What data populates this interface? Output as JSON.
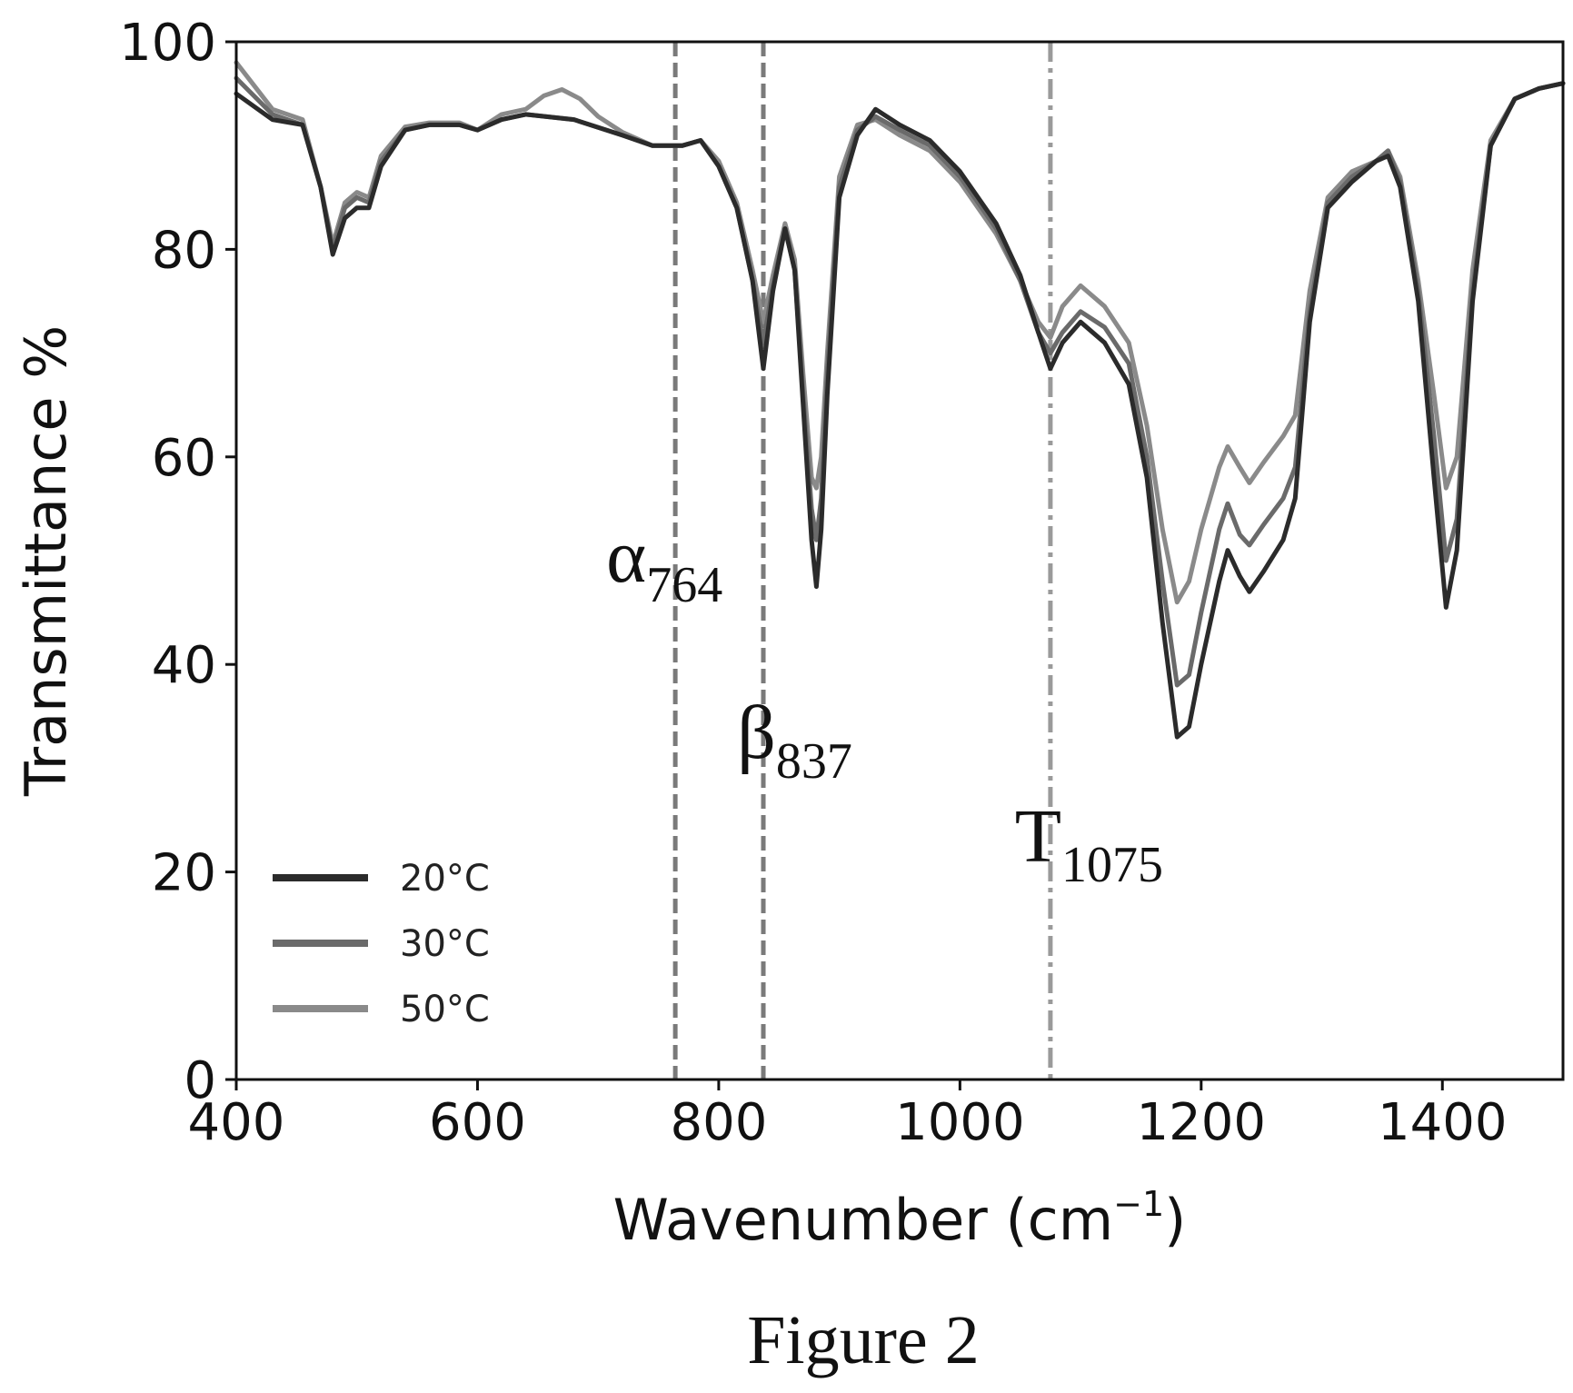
{
  "chart_data": {
    "type": "line",
    "xlabel": "Wavenumber (cm",
    "xlabel_sup": "−1",
    "xlabel_close": ")",
    "ylabel": "Transmittance %",
    "xlim": [
      400,
      1500
    ],
    "ylim": [
      0,
      100
    ],
    "x_ticks": [
      400,
      600,
      800,
      1000,
      1200,
      1400
    ],
    "y_ticks": [
      0,
      20,
      40,
      60,
      80,
      100
    ],
    "x_tick_labels": [
      "400",
      "600",
      "800",
      "1000",
      "1200",
      "1400"
    ],
    "y_tick_labels": [
      "0",
      "20",
      "40",
      "60",
      "80",
      "100"
    ],
    "grid": false,
    "legend_position": "bottom-left",
    "series": [
      {
        "name": "20°C",
        "color": "#2b2b2b",
        "points": [
          [
            400,
            95
          ],
          [
            430,
            92.5
          ],
          [
            455,
            92
          ],
          [
            470,
            86
          ],
          [
            480,
            79.5
          ],
          [
            490,
            83
          ],
          [
            500,
            84
          ],
          [
            510,
            84
          ],
          [
            520,
            88
          ],
          [
            540,
            91.5
          ],
          [
            560,
            92
          ],
          [
            585,
            92
          ],
          [
            600,
            91.5
          ],
          [
            620,
            92.5
          ],
          [
            640,
            93
          ],
          [
            680,
            92.5
          ],
          [
            720,
            91
          ],
          [
            745,
            90
          ],
          [
            770,
            90
          ],
          [
            785,
            90.5
          ],
          [
            800,
            88
          ],
          [
            815,
            84
          ],
          [
            828,
            77
          ],
          [
            837,
            68.5
          ],
          [
            845,
            76
          ],
          [
            855,
            82
          ],
          [
            863,
            78
          ],
          [
            870,
            65
          ],
          [
            877,
            52
          ],
          [
            881,
            47.5
          ],
          [
            885,
            53
          ],
          [
            890,
            66
          ],
          [
            900,
            85
          ],
          [
            915,
            91
          ],
          [
            930,
            93.5
          ],
          [
            950,
            92
          ],
          [
            975,
            90.5
          ],
          [
            1000,
            87.5
          ],
          [
            1030,
            82.5
          ],
          [
            1050,
            77.5
          ],
          [
            1065,
            72
          ],
          [
            1075,
            68.5
          ],
          [
            1085,
            71
          ],
          [
            1100,
            73
          ],
          [
            1120,
            71
          ],
          [
            1140,
            67
          ],
          [
            1155,
            58
          ],
          [
            1168,
            44
          ],
          [
            1180,
            33
          ],
          [
            1190,
            34
          ],
          [
            1200,
            40
          ],
          [
            1215,
            48
          ],
          [
            1222,
            51
          ],
          [
            1232,
            48.5
          ],
          [
            1240,
            47
          ],
          [
            1252,
            49
          ],
          [
            1268,
            52
          ],
          [
            1278,
            56
          ],
          [
            1290,
            73
          ],
          [
            1305,
            84
          ],
          [
            1325,
            86.5
          ],
          [
            1345,
            88.5
          ],
          [
            1355,
            89
          ],
          [
            1365,
            86
          ],
          [
            1380,
            75
          ],
          [
            1393,
            58
          ],
          [
            1403,
            45.5
          ],
          [
            1412,
            51
          ],
          [
            1425,
            75
          ],
          [
            1440,
            90
          ],
          [
            1460,
            94.5
          ],
          [
            1480,
            95.5
          ],
          [
            1500,
            96
          ]
        ]
      },
      {
        "name": "30°C",
        "color": "#6a6a6a",
        "points": [
          [
            400,
            96.5
          ],
          [
            430,
            93
          ],
          [
            455,
            92
          ],
          [
            470,
            86
          ],
          [
            480,
            80
          ],
          [
            490,
            84
          ],
          [
            500,
            85
          ],
          [
            510,
            84.5
          ],
          [
            520,
            88.5
          ],
          [
            540,
            91.5
          ],
          [
            560,
            92
          ],
          [
            585,
            92
          ],
          [
            600,
            91.5
          ],
          [
            620,
            92.5
          ],
          [
            640,
            93
          ],
          [
            680,
            92.5
          ],
          [
            720,
            91
          ],
          [
            745,
            90
          ],
          [
            770,
            90
          ],
          [
            785,
            90.5
          ],
          [
            800,
            88
          ],
          [
            815,
            84
          ],
          [
            828,
            77
          ],
          [
            837,
            71
          ],
          [
            845,
            76.5
          ],
          [
            855,
            82
          ],
          [
            863,
            78
          ],
          [
            870,
            66
          ],
          [
            877,
            55
          ],
          [
            881,
            52
          ],
          [
            885,
            56
          ],
          [
            890,
            68
          ],
          [
            900,
            86
          ],
          [
            915,
            91.5
          ],
          [
            930,
            92.8
          ],
          [
            950,
            91.5
          ],
          [
            975,
            90
          ],
          [
            1000,
            87
          ],
          [
            1030,
            82
          ],
          [
            1050,
            77
          ],
          [
            1065,
            72
          ],
          [
            1075,
            70
          ],
          [
            1085,
            72
          ],
          [
            1100,
            74
          ],
          [
            1120,
            72.5
          ],
          [
            1140,
            69
          ],
          [
            1155,
            60
          ],
          [
            1168,
            48
          ],
          [
            1180,
            38
          ],
          [
            1190,
            39
          ],
          [
            1200,
            45
          ],
          [
            1215,
            53
          ],
          [
            1222,
            55.5
          ],
          [
            1232,
            52.5
          ],
          [
            1240,
            51.5
          ],
          [
            1252,
            53.5
          ],
          [
            1268,
            56
          ],
          [
            1278,
            59
          ],
          [
            1290,
            74
          ],
          [
            1305,
            84.5
          ],
          [
            1325,
            87
          ],
          [
            1345,
            88.5
          ],
          [
            1355,
            89.5
          ],
          [
            1365,
            86.5
          ],
          [
            1380,
            76
          ],
          [
            1393,
            62
          ],
          [
            1403,
            50
          ],
          [
            1412,
            54
          ],
          [
            1425,
            76
          ],
          [
            1440,
            90
          ],
          [
            1460,
            94.5
          ],
          [
            1480,
            95.5
          ],
          [
            1500,
            96
          ]
        ]
      },
      {
        "name": "50°C",
        "color": "#8a8a8a",
        "points": [
          [
            400,
            98
          ],
          [
            430,
            93.5
          ],
          [
            455,
            92.5
          ],
          [
            470,
            86
          ],
          [
            480,
            80.5
          ],
          [
            490,
            84.5
          ],
          [
            500,
            85.5
          ],
          [
            510,
            85
          ],
          [
            520,
            89
          ],
          [
            540,
            91.8
          ],
          [
            560,
            92.2
          ],
          [
            585,
            92.2
          ],
          [
            600,
            91.5
          ],
          [
            620,
            93
          ],
          [
            640,
            93.5
          ],
          [
            655,
            94.8
          ],
          [
            670,
            95.4
          ],
          [
            685,
            94.5
          ],
          [
            700,
            92.8
          ],
          [
            720,
            91.3
          ],
          [
            745,
            90
          ],
          [
            770,
            90
          ],
          [
            785,
            90.5
          ],
          [
            800,
            88.5
          ],
          [
            815,
            84.5
          ],
          [
            828,
            78
          ],
          [
            837,
            73
          ],
          [
            845,
            77.5
          ],
          [
            855,
            82.5
          ],
          [
            863,
            79
          ],
          [
            870,
            68
          ],
          [
            877,
            58
          ],
          [
            881,
            57
          ],
          [
            885,
            60
          ],
          [
            890,
            70
          ],
          [
            900,
            87
          ],
          [
            915,
            92
          ],
          [
            930,
            92.5
          ],
          [
            950,
            91
          ],
          [
            975,
            89.5
          ],
          [
            1000,
            86.5
          ],
          [
            1030,
            81.5
          ],
          [
            1050,
            77
          ],
          [
            1065,
            73
          ],
          [
            1075,
            71.5
          ],
          [
            1085,
            74.5
          ],
          [
            1100,
            76.5
          ],
          [
            1120,
            74.5
          ],
          [
            1140,
            71
          ],
          [
            1155,
            63
          ],
          [
            1168,
            53
          ],
          [
            1180,
            46
          ],
          [
            1190,
            48
          ],
          [
            1200,
            53
          ],
          [
            1215,
            59
          ],
          [
            1222,
            61
          ],
          [
            1232,
            59
          ],
          [
            1240,
            57.5
          ],
          [
            1252,
            59.5
          ],
          [
            1268,
            62
          ],
          [
            1278,
            64
          ],
          [
            1290,
            76
          ],
          [
            1305,
            85
          ],
          [
            1325,
            87.5
          ],
          [
            1345,
            88.5
          ],
          [
            1355,
            89.5
          ],
          [
            1365,
            87
          ],
          [
            1380,
            77
          ],
          [
            1393,
            66
          ],
          [
            1403,
            57
          ],
          [
            1412,
            60
          ],
          [
            1425,
            78
          ],
          [
            1440,
            90.5
          ],
          [
            1460,
            94.5
          ],
          [
            1480,
            95.5
          ],
          [
            1500,
            96
          ]
        ]
      }
    ],
    "reference_lines": [
      {
        "x": 764,
        "style": "dashed",
        "color": "#7a7a7a"
      },
      {
        "x": 837,
        "style": "dashed",
        "color": "#7a7a7a"
      },
      {
        "x": 1075,
        "style": "dashdot",
        "color": "#9a9a9a"
      }
    ],
    "annotations": [
      {
        "symbol": "α",
        "sub": "764",
        "x": 755,
        "y": 48
      },
      {
        "symbol": "β",
        "sub": "837",
        "x": 863,
        "y": 31
      },
      {
        "symbol": "T",
        "sub": "1075",
        "x": 1107,
        "y": 21
      }
    ]
  },
  "caption": "Figure 2"
}
